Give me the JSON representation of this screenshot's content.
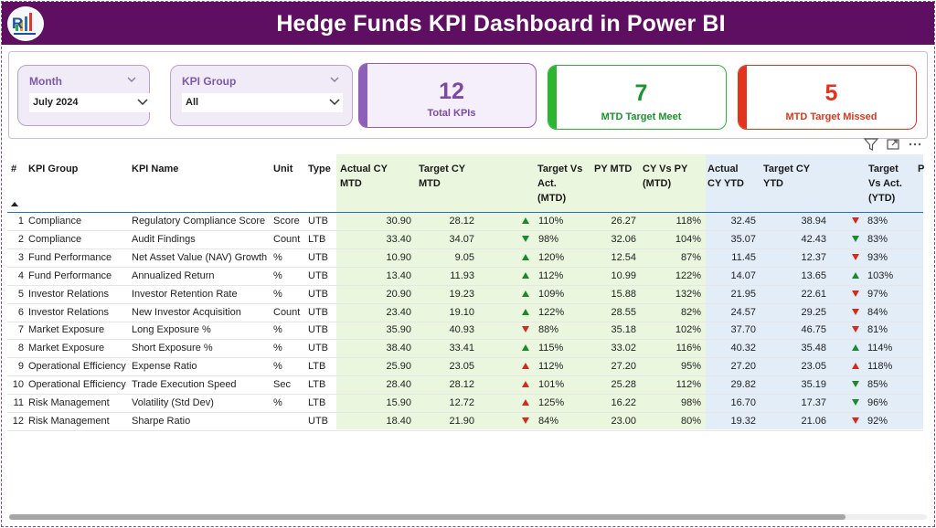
{
  "app": {
    "title": "Hedge Funds KPI Dashboard in Power BI"
  },
  "colors": {
    "header_bg": "#5e0f61",
    "accent_purple": "#8e5fb8",
    "accent_green": "#2cb530",
    "accent_red": "#e2341c",
    "mtd_shade": "#eaf6de",
    "ytd_shade": "#e2edf8"
  },
  "filters": {
    "month": {
      "label": "Month",
      "value": "July 2024"
    },
    "kpi_group": {
      "label": "KPI Group",
      "value": "All"
    }
  },
  "cards": {
    "total": {
      "value": "12",
      "label": "Total KPIs"
    },
    "met": {
      "value": "7",
      "label": "MTD Target Meet"
    },
    "missed": {
      "value": "5",
      "label": "MTD Target Missed"
    }
  },
  "toolbar": {
    "icons": [
      "filter-icon",
      "focus-mode-icon",
      "more-options-icon"
    ]
  },
  "table": {
    "headers": {
      "idx": "#",
      "group": "KPI Group",
      "name": "KPI Name",
      "unit": "Unit",
      "type": "Type",
      "actual_mtd_1": "Actual CY",
      "actual_mtd_2": "MTD",
      "target_mtd_1": "Target CY",
      "target_mtd_2": "MTD",
      "tva_mtd_1": "Target Vs",
      "tva_mtd_2": "Act.",
      "tva_mtd_3": "(MTD)",
      "py_mtd": "PY MTD",
      "cyvspy_1": "CY Vs PY",
      "cyvspy_2": "(MTD)",
      "actual_ytd_1": "Actual",
      "actual_ytd_2": "CY YTD",
      "target_ytd_1": "Target CY",
      "target_ytd_2": "YTD",
      "tva_ytd_1": "Target",
      "tva_ytd_2": "Vs Act.",
      "tva_ytd_3": "(YTD)",
      "cut": "P"
    },
    "rows": [
      {
        "idx": "1",
        "group": "Compliance",
        "name": "Regulatory Compliance Score",
        "unit": "Score",
        "type": "UTB",
        "actual_mtd": "30.90",
        "target_mtd": "28.12",
        "mtd_ind": "up-green",
        "mtd_pct": "110%",
        "py_mtd": "26.27",
        "cyvspy": "118%",
        "actual_ytd": "32.45",
        "target_ytd": "38.94",
        "ytd_ind": "down-red",
        "ytd_pct": "83%"
      },
      {
        "idx": "2",
        "group": "Compliance",
        "name": "Audit Findings",
        "unit": "Count",
        "type": "LTB",
        "actual_mtd": "33.40",
        "target_mtd": "34.07",
        "mtd_ind": "down-green",
        "mtd_pct": "98%",
        "py_mtd": "32.06",
        "cyvspy": "104%",
        "actual_ytd": "35.07",
        "target_ytd": "42.43",
        "ytd_ind": "down-green",
        "ytd_pct": "83%"
      },
      {
        "idx": "3",
        "group": "Fund Performance",
        "name": "Net Asset Value (NAV) Growth",
        "unit": "%",
        "type": "UTB",
        "actual_mtd": "10.90",
        "target_mtd": "9.05",
        "mtd_ind": "up-green",
        "mtd_pct": "120%",
        "py_mtd": "12.54",
        "cyvspy": "87%",
        "actual_ytd": "11.45",
        "target_ytd": "12.37",
        "ytd_ind": "down-red",
        "ytd_pct": "93%"
      },
      {
        "idx": "4",
        "group": "Fund Performance",
        "name": "Annualized Return",
        "unit": "%",
        "type": "UTB",
        "actual_mtd": "13.40",
        "target_mtd": "11.93",
        "mtd_ind": "up-green",
        "mtd_pct": "112%",
        "py_mtd": "10.99",
        "cyvspy": "122%",
        "actual_ytd": "14.07",
        "target_ytd": "13.65",
        "ytd_ind": "up-green",
        "ytd_pct": "103%"
      },
      {
        "idx": "5",
        "group": "Investor Relations",
        "name": "Investor Retention Rate",
        "unit": "%",
        "type": "UTB",
        "actual_mtd": "20.90",
        "target_mtd": "19.23",
        "mtd_ind": "up-green",
        "mtd_pct": "109%",
        "py_mtd": "15.88",
        "cyvspy": "132%",
        "actual_ytd": "21.95",
        "target_ytd": "22.61",
        "ytd_ind": "down-red",
        "ytd_pct": "97%"
      },
      {
        "idx": "6",
        "group": "Investor Relations",
        "name": "New Investor Acquisition",
        "unit": "Count",
        "type": "UTB",
        "actual_mtd": "23.40",
        "target_mtd": "19.10",
        "mtd_ind": "up-green",
        "mtd_pct": "122%",
        "py_mtd": "28.55",
        "cyvspy": "82%",
        "actual_ytd": "24.57",
        "target_ytd": "29.25",
        "ytd_ind": "down-red",
        "ytd_pct": "84%"
      },
      {
        "idx": "7",
        "group": "Market Exposure",
        "name": "Long Exposure %",
        "unit": "%",
        "type": "UTB",
        "actual_mtd": "35.90",
        "target_mtd": "40.93",
        "mtd_ind": "down-red",
        "mtd_pct": "88%",
        "py_mtd": "35.18",
        "cyvspy": "102%",
        "actual_ytd": "37.70",
        "target_ytd": "46.75",
        "ytd_ind": "down-red",
        "ytd_pct": "81%"
      },
      {
        "idx": "8",
        "group": "Market Exposure",
        "name": "Short Exposure %",
        "unit": "%",
        "type": "UTB",
        "actual_mtd": "38.40",
        "target_mtd": "33.41",
        "mtd_ind": "up-green",
        "mtd_pct": "115%",
        "py_mtd": "33.02",
        "cyvspy": "116%",
        "actual_ytd": "40.32",
        "target_ytd": "35.48",
        "ytd_ind": "up-green",
        "ytd_pct": "114%"
      },
      {
        "idx": "9",
        "group": "Operational Efficiency",
        "name": "Expense Ratio",
        "unit": "%",
        "type": "LTB",
        "actual_mtd": "25.90",
        "target_mtd": "23.05",
        "mtd_ind": "up-red",
        "mtd_pct": "112%",
        "py_mtd": "27.20",
        "cyvspy": "95%",
        "actual_ytd": "27.20",
        "target_ytd": "23.05",
        "ytd_ind": "up-red",
        "ytd_pct": "118%"
      },
      {
        "idx": "10",
        "group": "Operational Efficiency",
        "name": "Trade Execution Speed",
        "unit": "Sec",
        "type": "LTB",
        "actual_mtd": "28.40",
        "target_mtd": "28.12",
        "mtd_ind": "up-red",
        "mtd_pct": "101%",
        "py_mtd": "25.28",
        "cyvspy": "112%",
        "actual_ytd": "29.82",
        "target_ytd": "35.19",
        "ytd_ind": "down-green",
        "ytd_pct": "85%"
      },
      {
        "idx": "11",
        "group": "Risk Management",
        "name": "Volatility (Std Dev)",
        "unit": "%",
        "type": "LTB",
        "actual_mtd": "15.90",
        "target_mtd": "12.72",
        "mtd_ind": "up-red",
        "mtd_pct": "125%",
        "py_mtd": "16.22",
        "cyvspy": "98%",
        "actual_ytd": "16.70",
        "target_ytd": "17.37",
        "ytd_ind": "down-green",
        "ytd_pct": "96%"
      },
      {
        "idx": "12",
        "group": "Risk Management",
        "name": "Sharpe Ratio",
        "unit": "",
        "type": "UTB",
        "actual_mtd": "18.40",
        "target_mtd": "21.90",
        "mtd_ind": "down-red",
        "mtd_pct": "84%",
        "py_mtd": "23.00",
        "cyvspy": "80%",
        "actual_ytd": "19.32",
        "target_ytd": "21.06",
        "ytd_ind": "down-red",
        "ytd_pct": "92%"
      }
    ]
  }
}
